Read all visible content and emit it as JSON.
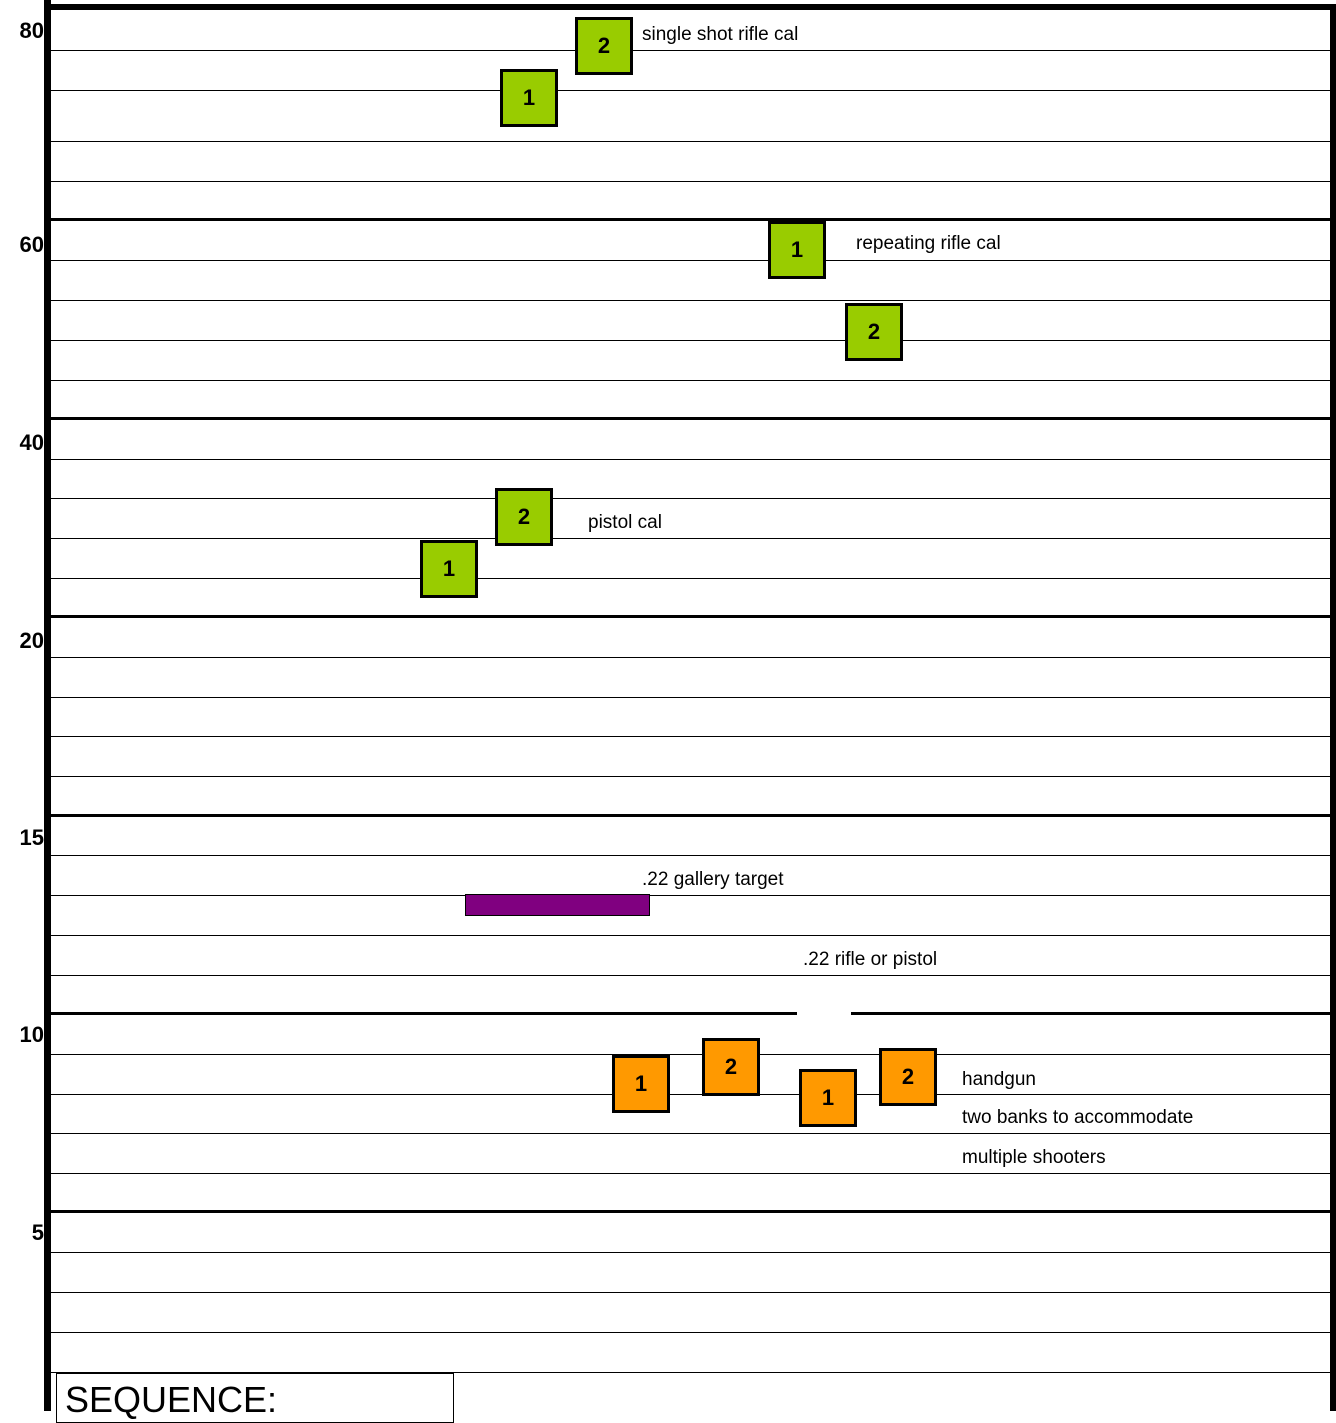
{
  "colors": {
    "rifle_target": "#99CC00",
    "handgun_target": "#FF9900",
    "gallery_target": "#800080",
    "line": "#000000"
  },
  "y_axis": {
    "labels": [
      "80",
      "60",
      "40",
      "20",
      "15",
      "10",
      "5"
    ]
  },
  "targets": {
    "single_shot": [
      "2",
      "1"
    ],
    "repeating": [
      "1",
      "2"
    ],
    "pistol": [
      "2",
      "1"
    ],
    "handgun": [
      "1",
      "2",
      "1",
      "2"
    ]
  },
  "annotations": {
    "single_shot": "single shot rifle cal",
    "repeating": "repeating rifle cal",
    "pistol": "pistol cal",
    "gallery": ".22 gallery target",
    "rimfire": ".22 rifle or pistol",
    "handgun": [
      "handgun",
      "two banks to accommodate",
      "multiple shooters"
    ]
  },
  "sequence_label": "SEQUENCE:"
}
